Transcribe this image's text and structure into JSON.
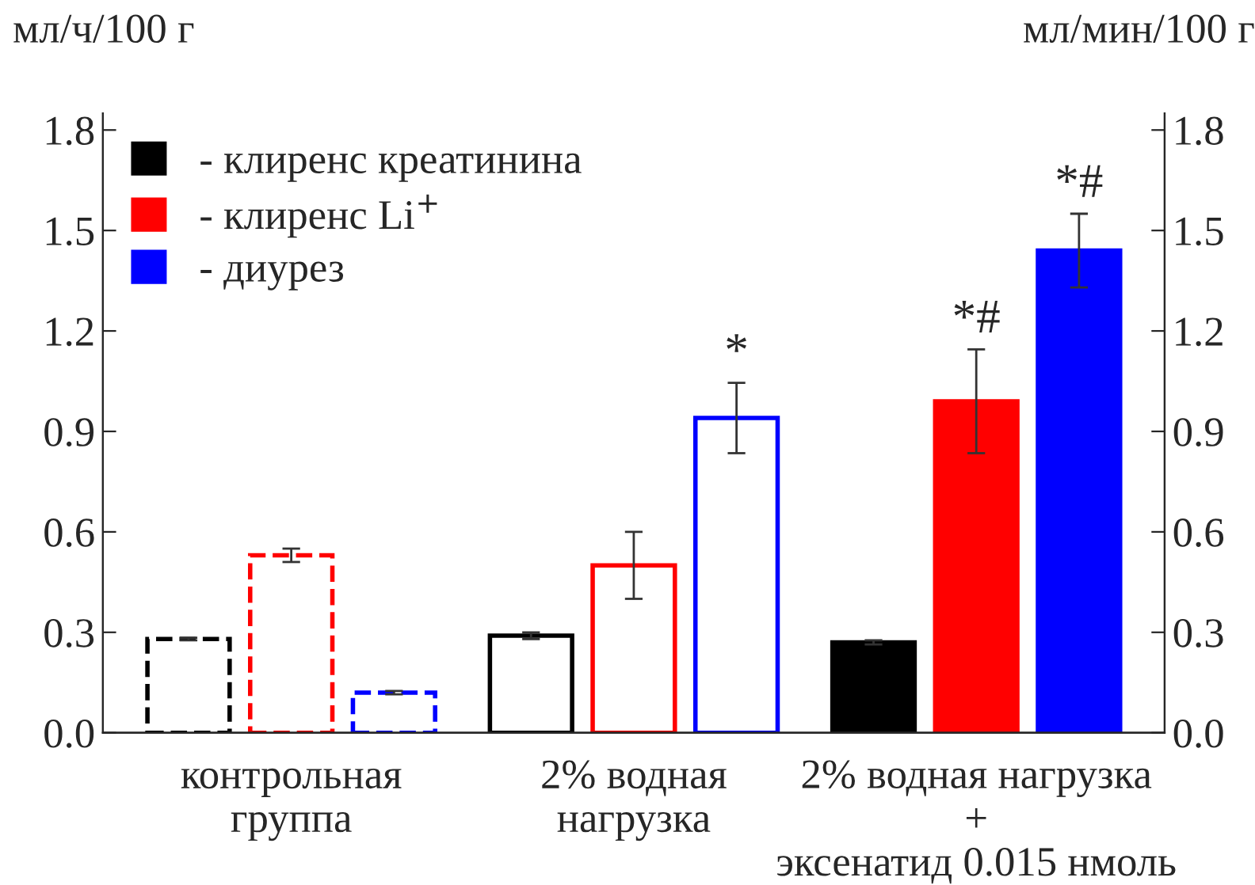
{
  "chart_data": {
    "type": "bar",
    "categories": [
      "контрольная\nгруппа",
      "2% водная\nнагрузка",
      "2% водная нагрузка\n+\nэксенатид 0.015 нмоль"
    ],
    "series": [
      {
        "name": "- клиренс креатинина",
        "color": "#000000",
        "values": [
          0.28,
          0.29,
          0.27
        ],
        "errors": [
          0.004,
          0.01,
          0.006
        ]
      },
      {
        "name": "- клиренс Li$^{+}$",
        "color": "#ff0000",
        "values": [
          0.53,
          0.5,
          0.99
        ],
        "errors": [
          0.02,
          0.1,
          0.155
        ],
        "value_labels": [
          null,
          null,
          "*#"
        ]
      },
      {
        "name": "- диурез",
        "color": "#0000ff",
        "values": [
          0.12,
          0.94,
          1.44
        ],
        "errors": [
          0.005,
          0.105,
          0.11
        ],
        "value_labels": [
          null,
          "*",
          "*#"
        ]
      }
    ],
    "ylabel": "мл/ч/100 г",
    "y2label": "мл/мин/100 г",
    "ylim": [
      0,
      1.85
    ],
    "yticks": [
      {
        "value": 0,
        "label": "0.0"
      },
      0.3,
      0.6,
      0.9,
      1.2,
      1.5,
      1.8
    ],
    "y2lim": [
      0,
      1.85
    ],
    "y2ticks": [
      {
        "value": 0,
        "label": "0.0"
      },
      0.3,
      0.6,
      0.9,
      1.2,
      1.5,
      1.8
    ],
    "legend": "top left",
    "grid": false
  }
}
